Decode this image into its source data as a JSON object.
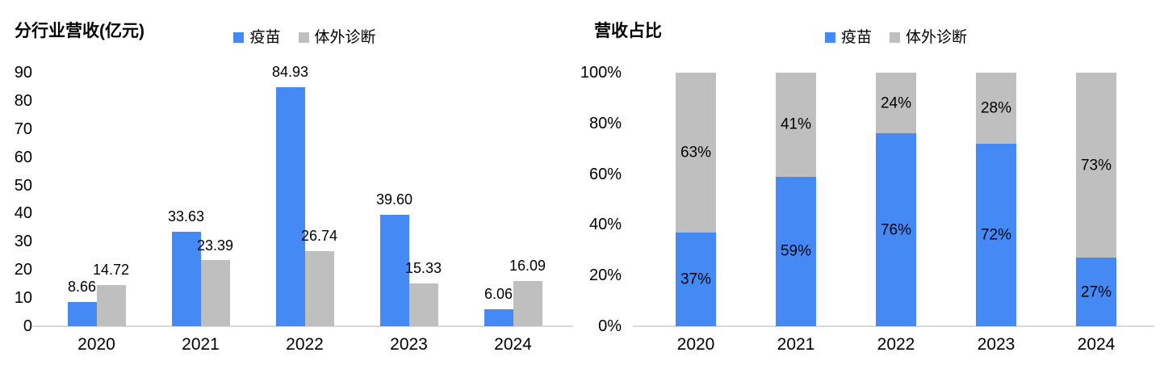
{
  "figure": {
    "background": "#FFFFFF"
  },
  "colors": {
    "vaccine_series": "#4589F5",
    "ivd_series": "#BFBFBF",
    "axis_line": "#D9D9D9",
    "text": "#000000"
  },
  "chart_data": [
    {
      "type": "bar",
      "title": "分行业营收(亿元)",
      "categories": [
        "2020",
        "2021",
        "2022",
        "2023",
        "2024"
      ],
      "series": [
        {
          "name": "疫苗",
          "color": "#4589F5",
          "values": [
            8.66,
            33.63,
            84.93,
            39.6,
            6.06
          ],
          "labels": [
            "8.66",
            "33.63",
            "84.93",
            "39.60",
            "6.06"
          ]
        },
        {
          "name": "体外诊断",
          "color": "#BFBFBF",
          "values": [
            14.72,
            23.39,
            26.74,
            15.33,
            16.09
          ],
          "labels": [
            "14.72",
            "23.39",
            "26.74",
            "15.33",
            "16.09"
          ]
        }
      ],
      "xlabel": "",
      "ylabel": "",
      "ylim": [
        0,
        90
      ],
      "yticks": [
        0,
        10,
        20,
        30,
        40,
        50,
        60,
        70,
        80,
        90
      ],
      "ytick_labels": [
        "0",
        "10",
        "20",
        "30",
        "40",
        "50",
        "60",
        "70",
        "80",
        "90"
      ],
      "grid": false,
      "legend_position": "top-center"
    },
    {
      "type": "stacked-bar",
      "title": "营收占比",
      "categories": [
        "2020",
        "2021",
        "2022",
        "2023",
        "2024"
      ],
      "series": [
        {
          "name": "疫苗",
          "color": "#4589F5",
          "values": [
            37,
            59,
            76,
            72,
            27
          ],
          "labels": [
            "37%",
            "59%",
            "76%",
            "72%",
            "27%"
          ]
        },
        {
          "name": "体外诊断",
          "color": "#BFBFBF",
          "values": [
            63,
            41,
            24,
            28,
            73
          ],
          "labels": [
            "63%",
            "41%",
            "24%",
            "28%",
            "73%"
          ]
        }
      ],
      "xlabel": "",
      "ylabel": "",
      "ylim": [
        0,
        100
      ],
      "yticks": [
        0,
        20,
        40,
        60,
        80,
        100
      ],
      "ytick_labels": [
        "0%",
        "20%",
        "40%",
        "60%",
        "80%",
        "100%"
      ],
      "grid": false,
      "legend_position": "top-center"
    }
  ]
}
